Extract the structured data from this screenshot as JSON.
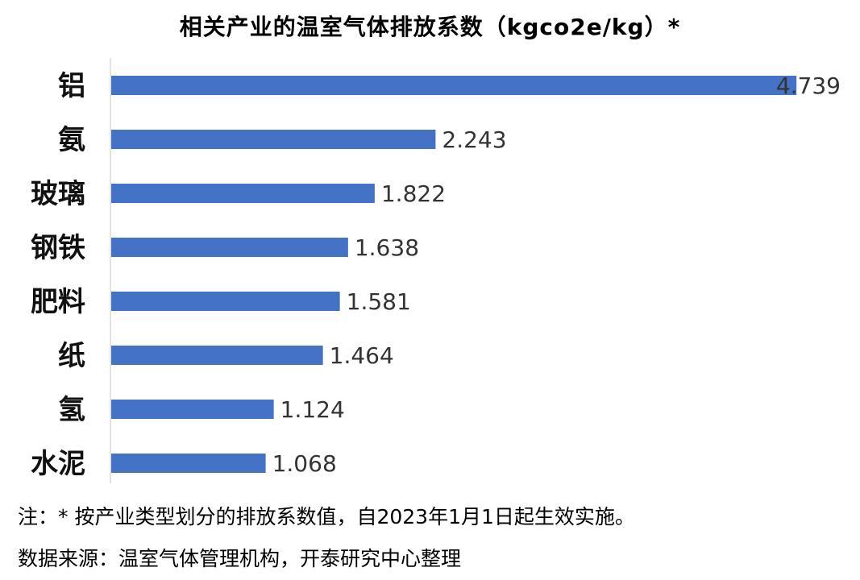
{
  "chart_data": {
    "type": "bar",
    "orientation": "horizontal",
    "title": "相关产业的温室气体排放系数（kgco2e/kg）*",
    "categories": [
      "铝",
      "氨",
      "玻璃",
      "钢铁",
      "肥料",
      "纸",
      "氢",
      "水泥"
    ],
    "values": [
      4.739,
      2.243,
      1.822,
      1.638,
      1.581,
      1.464,
      1.124,
      1.068
    ],
    "value_labels": [
      "4.739",
      "2.243",
      "1.822",
      "1.638",
      "1.581",
      "1.464",
      "1.124",
      "1.068"
    ],
    "xlim": [
      0,
      4.8
    ],
    "bar_color": "#4472C4",
    "grid": false,
    "legend": "none"
  },
  "note": "注：* 按产业类型划分的排放系数值，自2023年1月1日起生效实施。",
  "source": "数据来源：温室气体管理机构，开泰研究中心整理"
}
